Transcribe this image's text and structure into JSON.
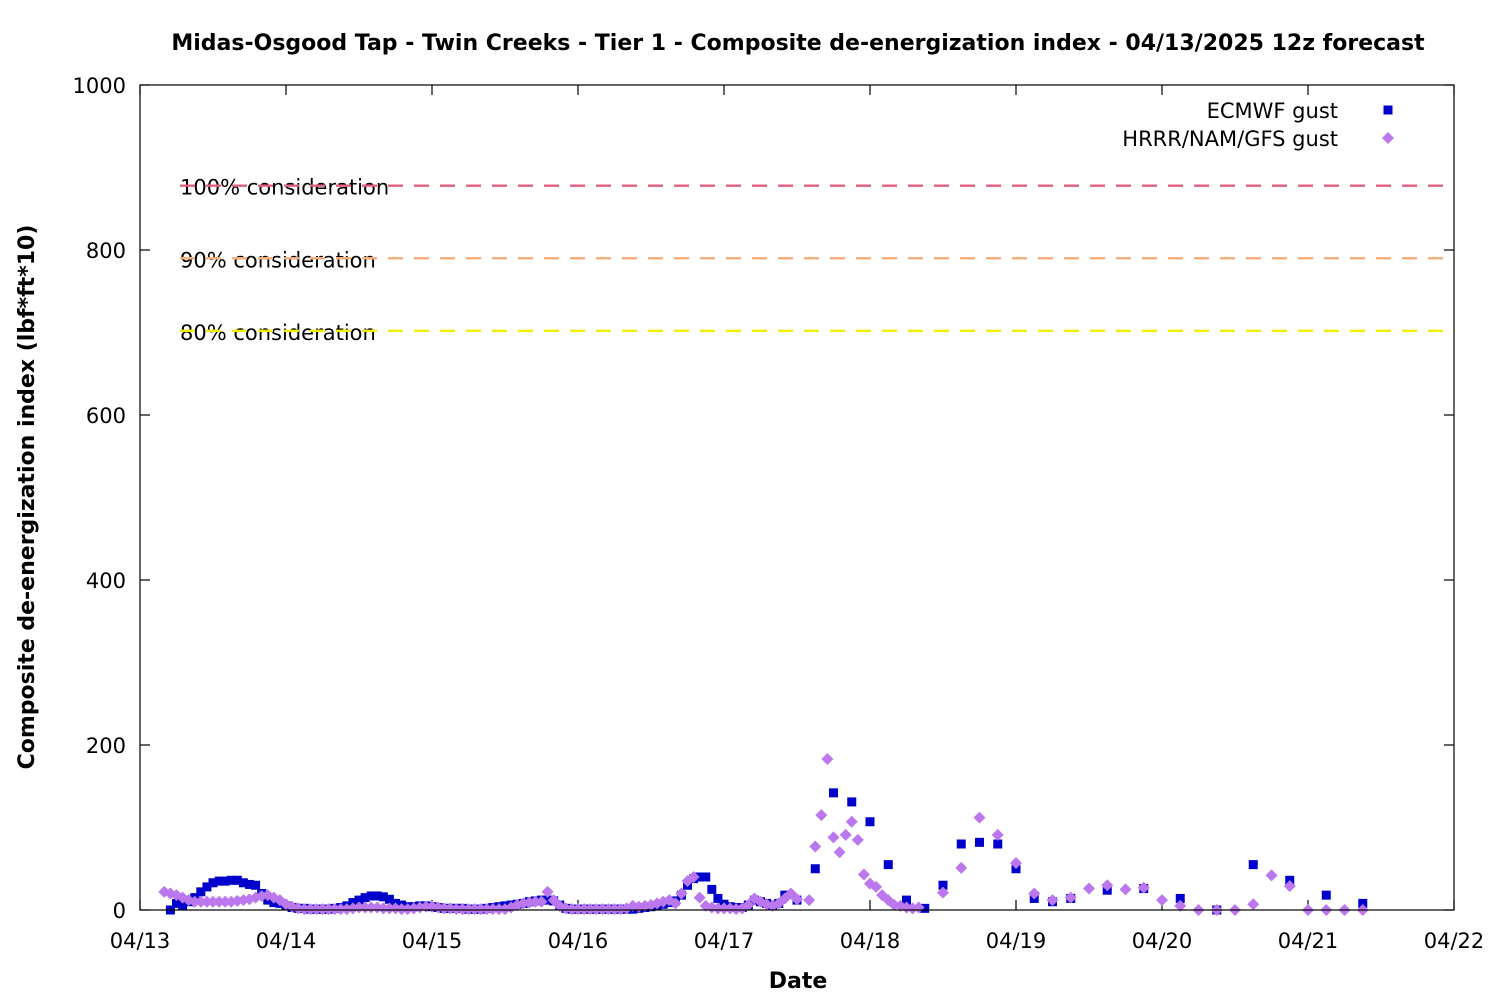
{
  "chart_data": {
    "type": "scatter",
    "title": "Midas-Osgood Tap - Twin Creeks - Tier 1 - Composite de-energization index - 04/13/2025 12z forecast",
    "xlabel": "Date",
    "ylabel": "Composite de-energization index (lbf*ft*10)",
    "xlim": [
      "04/13",
      "04/22"
    ],
    "ylim": [
      0,
      1000
    ],
    "x_ticks": [
      "04/13",
      "04/14",
      "04/15",
      "04/16",
      "04/17",
      "04/18",
      "04/19",
      "04/20",
      "04/21",
      "04/22"
    ],
    "y_ticks": [
      0,
      200,
      400,
      600,
      800,
      1000
    ],
    "grid": false,
    "legend_position": "top-right",
    "reference_lines": [
      {
        "label": "100% consideration",
        "value": 878,
        "color": "#e0607e"
      },
      {
        "label": "90% consideration",
        "value": 790,
        "color": "#f4b07e"
      },
      {
        "label": "80% consideration",
        "value": 702,
        "color": "#f0f000"
      }
    ],
    "series": [
      {
        "name": "ECMWF gust",
        "color": "#0000cc",
        "marker": "square",
        "points": [
          [
            "04/13 05:00",
            0
          ],
          [
            "04/13 06:00",
            8
          ],
          [
            "04/13 07:00",
            5
          ],
          [
            "04/13 08:00",
            10
          ],
          [
            "04/13 09:00",
            15
          ],
          [
            "04/13 10:00",
            22
          ],
          [
            "04/13 11:00",
            28
          ],
          [
            "04/13 12:00",
            33
          ],
          [
            "04/13 13:00",
            35
          ],
          [
            "04/13 14:00",
            35
          ],
          [
            "04/13 15:00",
            36
          ],
          [
            "04/13 16:00",
            36
          ],
          [
            "04/13 17:00",
            33
          ],
          [
            "04/13 18:00",
            31
          ],
          [
            "04/13 19:00",
            30
          ],
          [
            "04/13 20:00",
            20
          ],
          [
            "04/13 21:00",
            12
          ],
          [
            "04/13 22:00",
            9
          ],
          [
            "04/13 23:00",
            8
          ],
          [
            "04/14 00:00",
            5
          ],
          [
            "04/14 01:00",
            3
          ],
          [
            "04/14 02:00",
            2
          ],
          [
            "04/14 03:00",
            2
          ],
          [
            "04/14 04:00",
            1
          ],
          [
            "04/14 05:00",
            1
          ],
          [
            "04/14 06:00",
            1
          ],
          [
            "04/14 07:00",
            1
          ],
          [
            "04/14 08:00",
            2
          ],
          [
            "04/14 09:00",
            3
          ],
          [
            "04/14 10:00",
            5
          ],
          [
            "04/14 11:00",
            9
          ],
          [
            "04/14 12:00",
            12
          ],
          [
            "04/14 13:00",
            15
          ],
          [
            "04/14 14:00",
            17
          ],
          [
            "04/14 15:00",
            17
          ],
          [
            "04/14 16:00",
            16
          ],
          [
            "04/14 17:00",
            13
          ],
          [
            "04/14 18:00",
            8
          ],
          [
            "04/14 19:00",
            6
          ],
          [
            "04/14 20:00",
            4
          ],
          [
            "04/14 21:00",
            4
          ],
          [
            "04/14 22:00",
            5
          ],
          [
            "04/14 23:00",
            5
          ],
          [
            "04/15 00:00",
            4
          ],
          [
            "04/15 01:00",
            3
          ],
          [
            "04/15 02:00",
            2
          ],
          [
            "04/15 03:00",
            2
          ],
          [
            "04/15 04:00",
            2
          ],
          [
            "04/15 05:00",
            2
          ],
          [
            "04/15 06:00",
            1
          ],
          [
            "04/15 07:00",
            1
          ],
          [
            "04/15 08:00",
            1
          ],
          [
            "04/15 09:00",
            2
          ],
          [
            "04/15 10:00",
            3
          ],
          [
            "04/15 11:00",
            4
          ],
          [
            "04/15 12:00",
            5
          ],
          [
            "04/15 13:00",
            6
          ],
          [
            "04/15 14:00",
            7
          ],
          [
            "04/15 15:00",
            8
          ],
          [
            "04/15 16:00",
            10
          ],
          [
            "04/15 17:00",
            11
          ],
          [
            "04/15 18:00",
            12
          ],
          [
            "04/15 19:00",
            12
          ],
          [
            "04/15 20:00",
            11
          ],
          [
            "04/15 21:00",
            6
          ],
          [
            "04/15 22:00",
            2
          ],
          [
            "04/15 23:00",
            1
          ],
          [
            "04/16 00:00",
            1
          ],
          [
            "04/16 01:00",
            1
          ],
          [
            "04/16 02:00",
            1
          ],
          [
            "04/16 03:00",
            1
          ],
          [
            "04/16 04:00",
            1
          ],
          [
            "04/16 05:00",
            1
          ],
          [
            "04/16 06:00",
            1
          ],
          [
            "04/16 07:00",
            1
          ],
          [
            "04/16 08:00",
            1
          ],
          [
            "04/16 09:00",
            1
          ],
          [
            "04/16 10:00",
            2
          ],
          [
            "04/16 11:00",
            3
          ],
          [
            "04/16 12:00",
            4
          ],
          [
            "04/16 13:00",
            5
          ],
          [
            "04/16 14:00",
            7
          ],
          [
            "04/16 15:00",
            9
          ],
          [
            "04/16 16:00",
            11
          ],
          [
            "04/16 17:00",
            18
          ],
          [
            "04/16 18:00",
            30
          ],
          [
            "04/16 19:00",
            38
          ],
          [
            "04/16 20:00",
            40
          ],
          [
            "04/16 21:00",
            40
          ],
          [
            "04/16 22:00",
            25
          ],
          [
            "04/16 23:00",
            14
          ],
          [
            "04/17 00:00",
            7
          ],
          [
            "04/17 01:00",
            4
          ],
          [
            "04/17 02:00",
            3
          ],
          [
            "04/17 03:00",
            3
          ],
          [
            "04/17 04:00",
            6
          ],
          [
            "04/17 05:00",
            12
          ],
          [
            "04/17 06:00",
            10
          ],
          [
            "04/17 07:00",
            8
          ],
          [
            "04/17 08:00",
            6
          ],
          [
            "04/17 09:00",
            8
          ],
          [
            "04/17 10:00",
            18
          ],
          [
            "04/17 12:00",
            12
          ],
          [
            "04/17 15:00",
            50
          ],
          [
            "04/17 18:00",
            142
          ],
          [
            "04/17 21:00",
            131
          ],
          [
            "04/18 00:00",
            107
          ],
          [
            "04/18 03:00",
            55
          ],
          [
            "04/18 06:00",
            12
          ],
          [
            "04/18 09:00",
            2
          ],
          [
            "04/18 12:00",
            30
          ],
          [
            "04/18 15:00",
            80
          ],
          [
            "04/18 18:00",
            82
          ],
          [
            "04/18 21:00",
            80
          ],
          [
            "04/19 00:00",
            50
          ],
          [
            "04/19 03:00",
            14
          ],
          [
            "04/19 06:00",
            10
          ],
          [
            "04/19 09:00",
            14
          ],
          [
            "04/19 15:00",
            24
          ],
          [
            "04/19 21:00",
            26
          ],
          [
            "04/20 03:00",
            14
          ],
          [
            "04/20 09:00",
            0
          ],
          [
            "04/20 15:00",
            55
          ],
          [
            "04/20 21:00",
            36
          ],
          [
            "04/21 03:00",
            18
          ],
          [
            "04/21 09:00",
            8
          ]
        ]
      },
      {
        "name": "HRRR/NAM/GFS gust",
        "color": "#bb77ee",
        "marker": "diamond",
        "points": [
          [
            "04/13 04:00",
            22
          ],
          [
            "04/13 05:00",
            20
          ],
          [
            "04/13 06:00",
            18
          ],
          [
            "04/13 07:00",
            15
          ],
          [
            "04/13 08:00",
            12
          ],
          [
            "04/13 09:00",
            10
          ],
          [
            "04/13 10:00",
            10
          ],
          [
            "04/13 11:00",
            10
          ],
          [
            "04/13 12:00",
            10
          ],
          [
            "04/13 13:00",
            10
          ],
          [
            "04/13 14:00",
            10
          ],
          [
            "04/13 15:00",
            10
          ],
          [
            "04/13 16:00",
            11
          ],
          [
            "04/13 17:00",
            12
          ],
          [
            "04/13 18:00",
            13
          ],
          [
            "04/13 19:00",
            15
          ],
          [
            "04/13 20:00",
            17
          ],
          [
            "04/13 21:00",
            18
          ],
          [
            "04/13 22:00",
            15
          ],
          [
            "04/13 23:00",
            12
          ],
          [
            "04/14 00:00",
            7
          ],
          [
            "04/14 01:00",
            4
          ],
          [
            "04/14 02:00",
            2
          ],
          [
            "04/14 03:00",
            1
          ],
          [
            "04/14 04:00",
            1
          ],
          [
            "04/14 05:00",
            1
          ],
          [
            "04/14 06:00",
            1
          ],
          [
            "04/14 07:00",
            1
          ],
          [
            "04/14 08:00",
            1
          ],
          [
            "04/14 09:00",
            1
          ],
          [
            "04/14 10:00",
            1
          ],
          [
            "04/14 11:00",
            2
          ],
          [
            "04/14 12:00",
            3
          ],
          [
            "04/14 13:00",
            3
          ],
          [
            "04/14 14:00",
            3
          ],
          [
            "04/14 15:00",
            3
          ],
          [
            "04/14 16:00",
            2
          ],
          [
            "04/14 17:00",
            2
          ],
          [
            "04/14 18:00",
            2
          ],
          [
            "04/14 19:00",
            1
          ],
          [
            "04/14 20:00",
            1
          ],
          [
            "04/14 21:00",
            2
          ],
          [
            "04/14 22:00",
            3
          ],
          [
            "04/14 23:00",
            4
          ],
          [
            "04/15 00:00",
            4
          ],
          [
            "04/15 01:00",
            3
          ],
          [
            "04/15 02:00",
            2
          ],
          [
            "04/15 03:00",
            2
          ],
          [
            "04/15 04:00",
            1
          ],
          [
            "04/15 05:00",
            1
          ],
          [
            "04/15 06:00",
            1
          ],
          [
            "04/15 07:00",
            1
          ],
          [
            "04/15 08:00",
            1
          ],
          [
            "04/15 09:00",
            1
          ],
          [
            "04/15 10:00",
            1
          ],
          [
            "04/15 11:00",
            1
          ],
          [
            "04/15 12:00",
            1
          ],
          [
            "04/15 13:00",
            3
          ],
          [
            "04/15 14:00",
            6
          ],
          [
            "04/15 15:00",
            8
          ],
          [
            "04/15 16:00",
            9
          ],
          [
            "04/15 17:00",
            10
          ],
          [
            "04/15 18:00",
            10
          ],
          [
            "04/15 19:00",
            22
          ],
          [
            "04/15 20:00",
            12
          ],
          [
            "04/15 21:00",
            5
          ],
          [
            "04/15 22:00",
            2
          ],
          [
            "04/15 23:00",
            1
          ],
          [
            "04/16 00:00",
            1
          ],
          [
            "04/16 01:00",
            1
          ],
          [
            "04/16 02:00",
            1
          ],
          [
            "04/16 03:00",
            1
          ],
          [
            "04/16 04:00",
            1
          ],
          [
            "04/16 05:00",
            1
          ],
          [
            "04/16 06:00",
            1
          ],
          [
            "04/16 07:00",
            1
          ],
          [
            "04/16 08:00",
            2
          ],
          [
            "04/16 09:00",
            5
          ],
          [
            "04/16 10:00",
            4
          ],
          [
            "04/16 11:00",
            5
          ],
          [
            "04/16 12:00",
            6
          ],
          [
            "04/16 13:00",
            8
          ],
          [
            "04/16 14:00",
            10
          ],
          [
            "04/16 15:00",
            12
          ],
          [
            "04/16 16:00",
            8
          ],
          [
            "04/16 17:00",
            20
          ],
          [
            "04/16 18:00",
            35
          ],
          [
            "04/16 19:00",
            40
          ],
          [
            "04/16 20:00",
            15
          ],
          [
            "04/16 21:00",
            5
          ],
          [
            "04/16 22:00",
            3
          ],
          [
            "04/16 23:00",
            2
          ],
          [
            "04/17 00:00",
            2
          ],
          [
            "04/17 01:00",
            2
          ],
          [
            "04/17 02:00",
            1
          ],
          [
            "04/17 03:00",
            2
          ],
          [
            "04/17 04:00",
            6
          ],
          [
            "04/17 05:00",
            14
          ],
          [
            "04/17 06:00",
            10
          ],
          [
            "04/17 07:00",
            7
          ],
          [
            "04/17 08:00",
            5
          ],
          [
            "04/17 09:00",
            8
          ],
          [
            "04/17 10:00",
            14
          ],
          [
            "04/17 11:00",
            20
          ],
          [
            "04/17 12:00",
            13
          ],
          [
            "04/17 14:00",
            12
          ],
          [
            "04/17 15:00",
            77
          ],
          [
            "04/17 16:00",
            115
          ],
          [
            "04/17 17:00",
            183
          ],
          [
            "04/17 18:00",
            88
          ],
          [
            "04/17 19:00",
            70
          ],
          [
            "04/17 20:00",
            91
          ],
          [
            "04/17 21:00",
            107
          ],
          [
            "04/17 22:00",
            85
          ],
          [
            "04/17 23:00",
            43
          ],
          [
            "04/18 00:00",
            32
          ],
          [
            "04/18 01:00",
            28
          ],
          [
            "04/18 02:00",
            18
          ],
          [
            "04/18 03:00",
            12
          ],
          [
            "04/18 04:00",
            6
          ],
          [
            "04/18 05:00",
            5
          ],
          [
            "04/18 06:00",
            3
          ],
          [
            "04/18 07:00",
            2
          ],
          [
            "04/18 08:00",
            3
          ],
          [
            "04/18 12:00",
            21
          ],
          [
            "04/18 15:00",
            51
          ],
          [
            "04/18 18:00",
            112
          ],
          [
            "04/18 21:00",
            91
          ],
          [
            "04/19 00:00",
            57
          ],
          [
            "04/19 03:00",
            20
          ],
          [
            "04/19 06:00",
            12
          ],
          [
            "04/19 09:00",
            15
          ],
          [
            "04/19 12:00",
            26
          ],
          [
            "04/19 15:00",
            30
          ],
          [
            "04/19 18:00",
            25
          ],
          [
            "04/19 21:00",
            27
          ],
          [
            "04/20 00:00",
            12
          ],
          [
            "04/20 03:00",
            5
          ],
          [
            "04/20 06:00",
            0
          ],
          [
            "04/20 09:00",
            0
          ],
          [
            "04/20 12:00",
            0
          ],
          [
            "04/20 15:00",
            7
          ],
          [
            "04/20 18:00",
            42
          ],
          [
            "04/20 21:00",
            29
          ],
          [
            "04/21 00:00",
            0
          ],
          [
            "04/21 03:00",
            0
          ],
          [
            "04/21 06:00",
            0
          ],
          [
            "04/21 09:00",
            0
          ]
        ]
      }
    ]
  }
}
